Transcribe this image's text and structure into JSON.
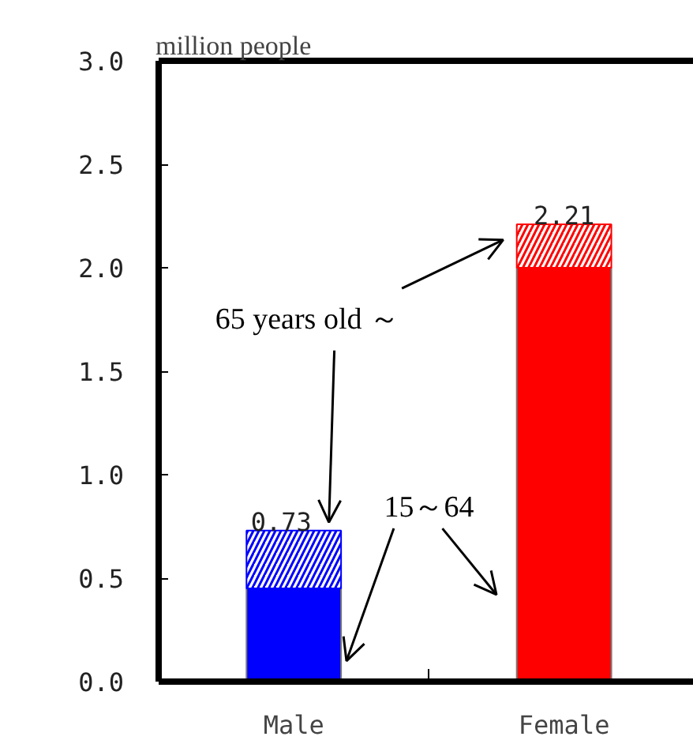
{
  "chart_data": {
    "type": "bar",
    "stacked": true,
    "ylabel": "million people",
    "categories": [
      "Male",
      "Female"
    ],
    "series": [
      {
        "name": "15～64",
        "colors": [
          "#0000ff",
          "#ff0000"
        ],
        "values": [
          0.45,
          2.0
        ]
      },
      {
        "name": "65 years old ～",
        "colors": [
          "#0000ff",
          "#ff0000"
        ],
        "values": [
          0.28,
          0.21
        ]
      }
    ],
    "totals": [
      "0.73",
      "2.21"
    ],
    "ylim": [
      0,
      3.0
    ],
    "yticks": [
      {
        "value": 0,
        "label": "0.0"
      },
      {
        "value": 0.5,
        "label": "0.5"
      },
      {
        "value": 1.0,
        "label": "1.0"
      },
      {
        "value": 1.5,
        "label": "1.5"
      },
      {
        "value": 2.0,
        "label": "2.0"
      },
      {
        "value": 2.5,
        "label": "2.5"
      },
      {
        "value": 3.0,
        "label": "3.0"
      }
    ],
    "grid": false
  }
}
